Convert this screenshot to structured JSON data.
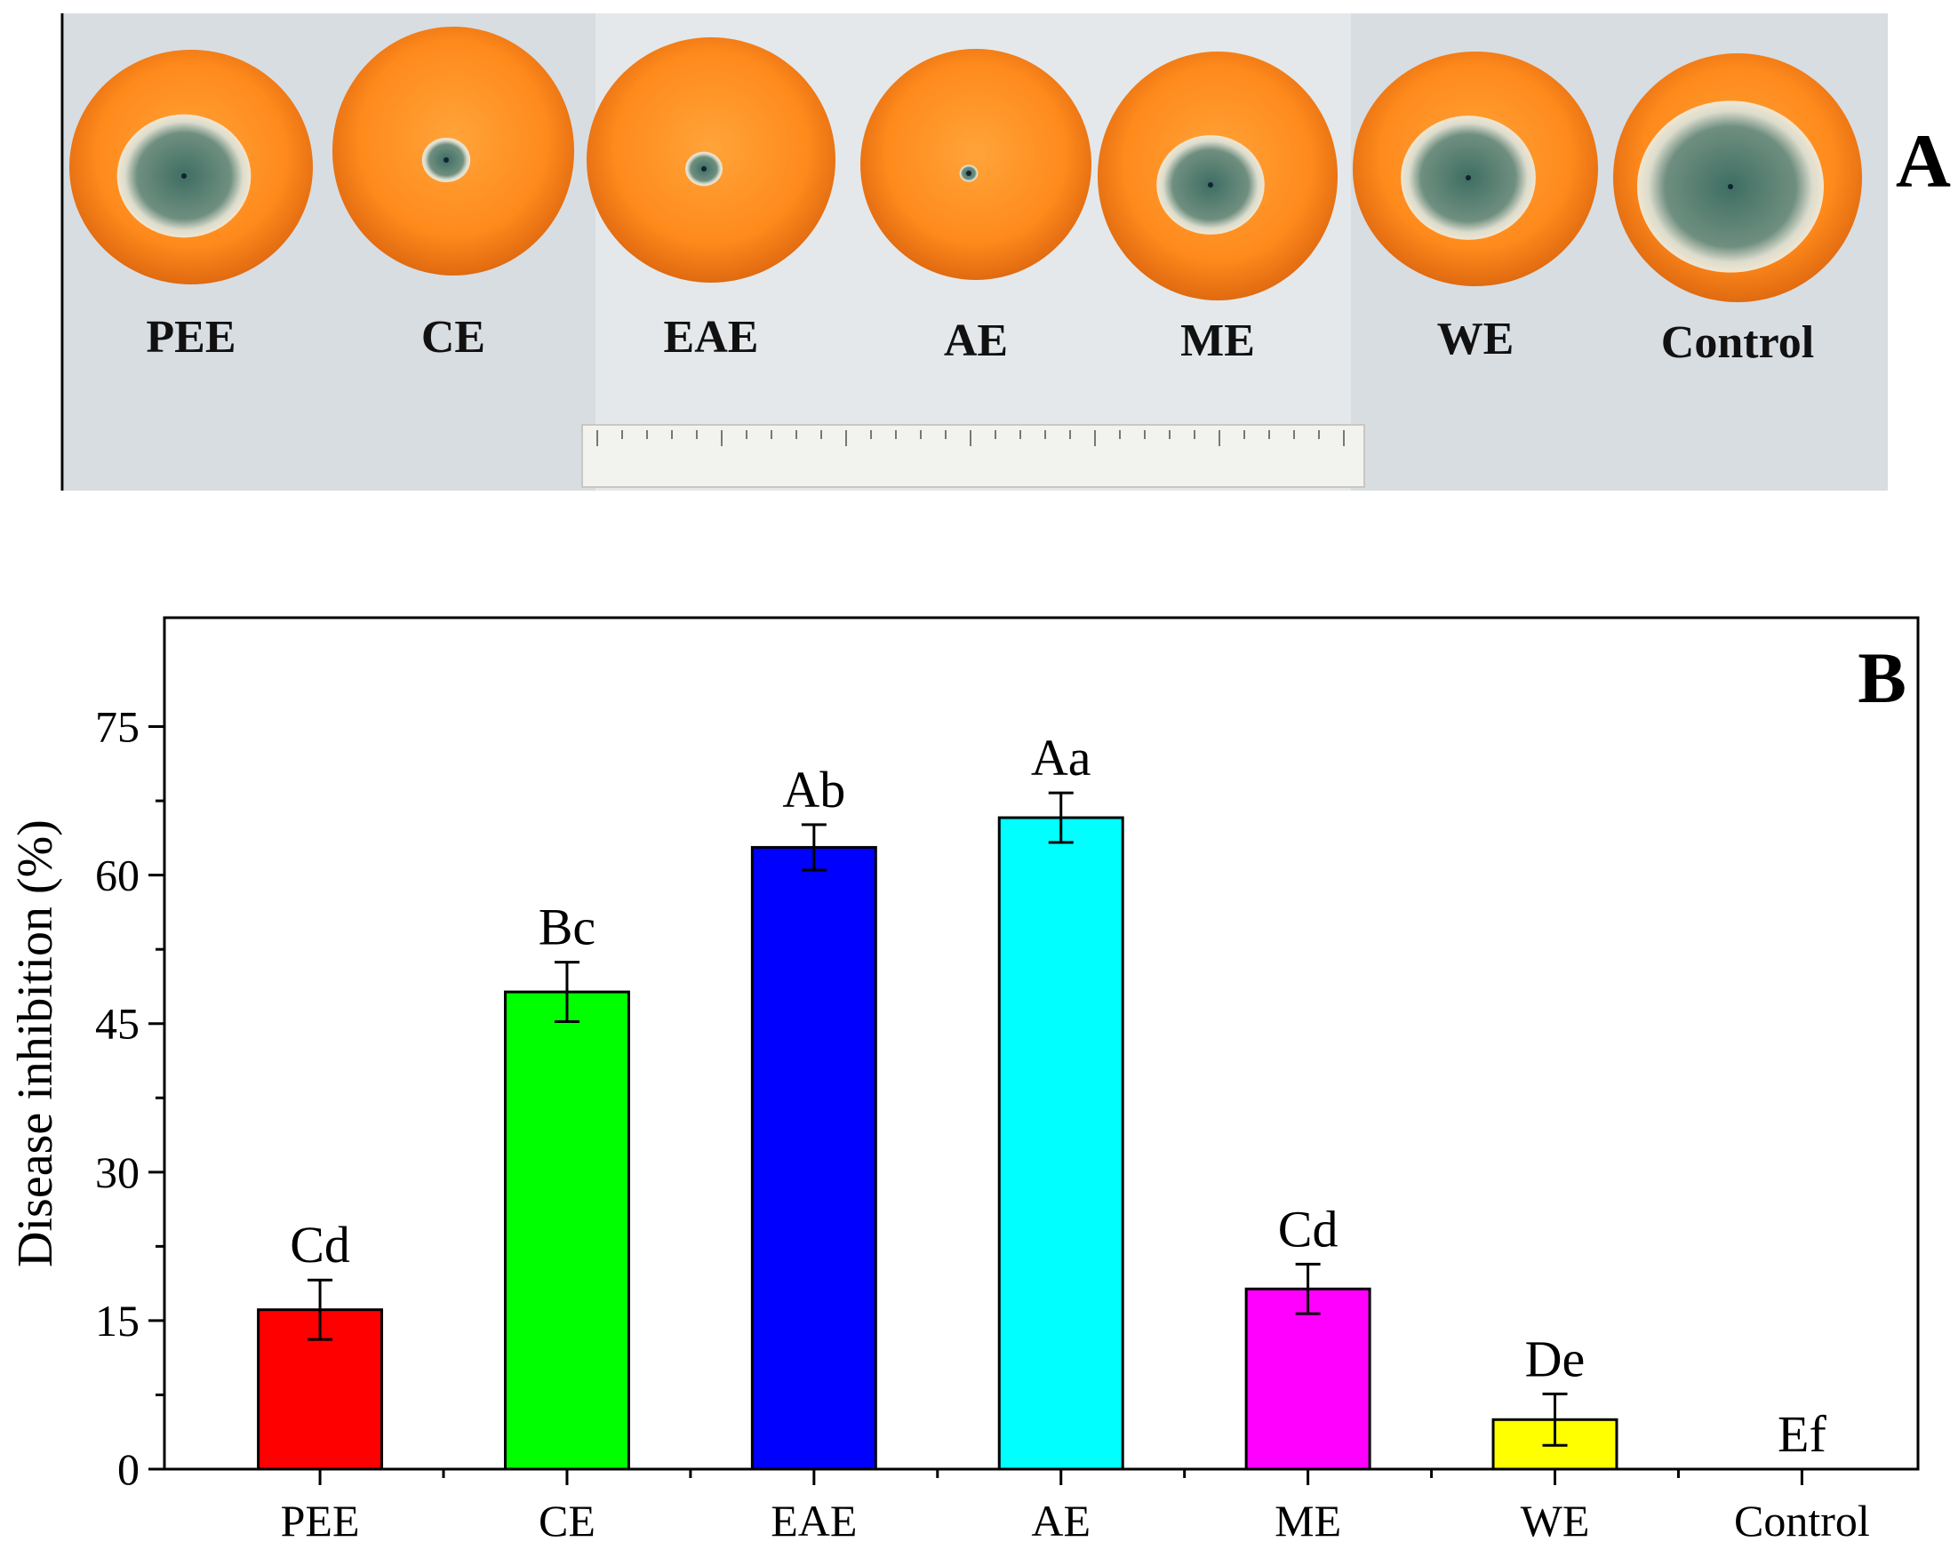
{
  "panel_a": {
    "label": "A",
    "fruit_labels": [
      "PEE",
      "CE",
      "EAE",
      "AE",
      "ME",
      "WE",
      "Control"
    ],
    "lesion_fraction": [
      0.55,
      0.2,
      0.15,
      0.08,
      0.45,
      0.55,
      0.75
    ]
  },
  "chart_data": {
    "type": "bar",
    "panel_label": "B",
    "ylabel": "Disease inhibition (%)",
    "xlabel": "",
    "categories": [
      "PEE",
      "CE",
      "EAE",
      "AE",
      "ME",
      "WE",
      "Control"
    ],
    "values": [
      16.1,
      48.2,
      62.8,
      65.8,
      18.2,
      5.0,
      0.0
    ],
    "errors": [
      3.0,
      3.0,
      2.3,
      2.5,
      2.5,
      2.6,
      0.0
    ],
    "significance": [
      "Cd",
      "Bc",
      "Ab",
      "Aa",
      "Cd",
      "De",
      "Ef"
    ],
    "colors": [
      "#ff0000",
      "#00ff00",
      "#0000ff",
      "#00ffff",
      "#ff00ff",
      "#ffff00",
      "#ffffff"
    ],
    "ylim": [
      0,
      86
    ],
    "yticks": [
      0,
      15,
      30,
      45,
      60,
      75
    ],
    "grid": false
  }
}
